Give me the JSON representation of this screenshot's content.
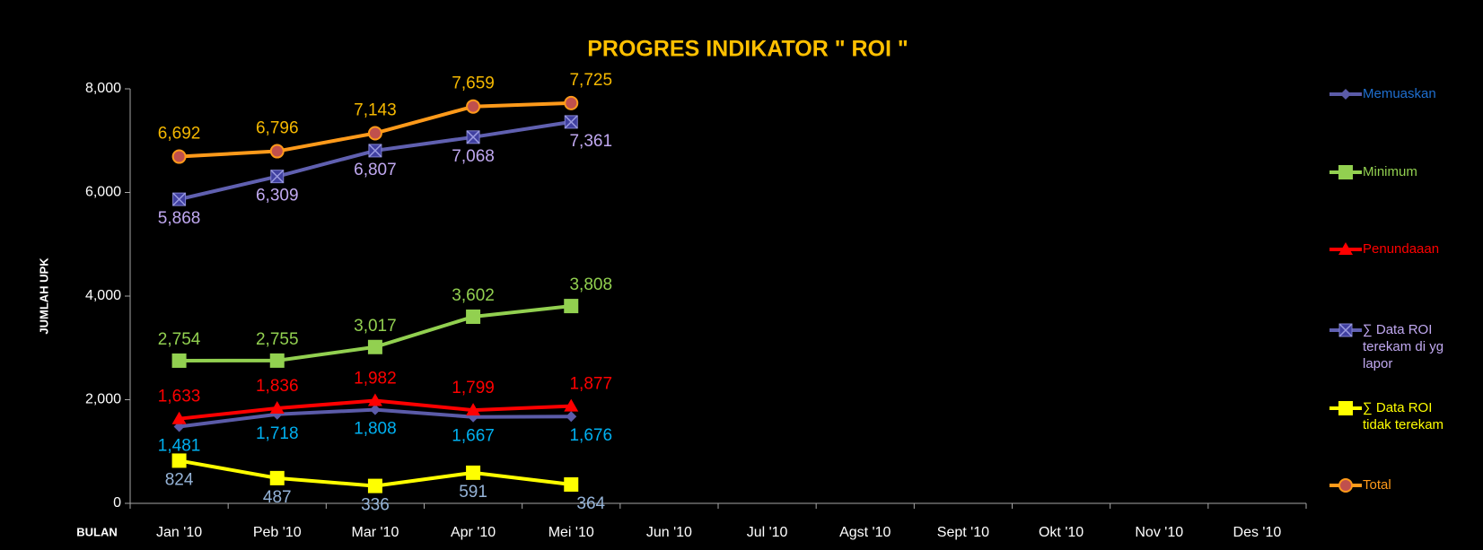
{
  "chart_data": {
    "type": "line",
    "title": "PROGRES INDIKATOR \" ROI \"",
    "y_label": "JUMLAH UPK",
    "x_label": "BULAN",
    "categories": [
      "Jan '10",
      "Peb '10",
      "Mar '10",
      "Apr '10",
      "Mei '10",
      "Jun '10",
      "Jul '10",
      "Agst '10",
      "Sept '10",
      "Okt '10",
      "Nov '10",
      "Des '10"
    ],
    "ylim": [
      0,
      8000
    ],
    "yticks": [
      0,
      {
        "value": 2000,
        "label": "2,000"
      },
      {
        "value": 4000,
        "label": "4,000"
      },
      {
        "value": 6000,
        "label": "6,000"
      },
      {
        "value": 8000,
        "label": "8,000"
      }
    ],
    "grid": false,
    "legend": "right",
    "series": [
      {
        "name": "Memuaskan",
        "color": "#5b5ba8",
        "label_color": "#00b0f0",
        "legend_text_color": "#1f6fd0",
        "marker": "diamond",
        "values": [
          1481,
          1718,
          1808,
          1667,
          1676,
          null,
          null,
          null,
          null,
          null,
          null,
          null
        ],
        "value_labels": [
          "1,481",
          "1,718",
          "1,808",
          "1,667",
          "1,676",
          null,
          null,
          null,
          null,
          null,
          null,
          null
        ]
      },
      {
        "name": "Minimum",
        "color": "#92d050",
        "label_color": "#92d050",
        "legend_text_color": "#92d050",
        "marker": "square",
        "values": [
          2754,
          2755,
          3017,
          3602,
          3808,
          null,
          null,
          null,
          null,
          null,
          null,
          null
        ],
        "value_labels": [
          "2,754",
          "2,755",
          "3,017",
          "3,602",
          "3,808",
          null,
          null,
          null,
          null,
          null,
          null,
          null
        ]
      },
      {
        "name": "Penundaaan",
        "color": "#ff0000",
        "label_color": "#ff0000",
        "legend_text_color": "#ff0000",
        "marker": "triangle",
        "values": [
          1633,
          1836,
          1982,
          1799,
          1877,
          null,
          null,
          null,
          null,
          null,
          null,
          null
        ],
        "value_labels": [
          "1,633",
          "1,836",
          "1,982",
          "1,799",
          "1,877",
          null,
          null,
          null,
          null,
          null,
          null,
          null
        ]
      },
      {
        "name": "∑ Data ROI terekam di yg lapor",
        "color": "#6060b0",
        "label_color": "#c0a8f0",
        "legend_text_color": "#c0a8f0",
        "marker": "xsquare",
        "values": [
          5868,
          6309,
          6807,
          7068,
          7361,
          null,
          null,
          null,
          null,
          null,
          null,
          null
        ],
        "value_labels": [
          "5,868",
          "6,309",
          "6,807",
          "7,068",
          "7,361",
          null,
          null,
          null,
          null,
          null,
          null,
          null
        ]
      },
      {
        "name": "∑ Data ROI tidak terekam",
        "color": "#ffff00",
        "label_color": "#95b3d7",
        "legend_text_color": "#ffff00",
        "marker": "square",
        "values": [
          824,
          487,
          336,
          591,
          364,
          null,
          null,
          null,
          null,
          null,
          null,
          null
        ],
        "value_labels": [
          "824",
          "487",
          "336",
          "591",
          "364",
          null,
          null,
          null,
          null,
          null,
          null,
          null
        ]
      },
      {
        "name": "Total",
        "color": "#ff9a1a",
        "label_color": "#f5b800",
        "legend_text_color": "#ff9a1a",
        "marker": "circle",
        "values": [
          6692,
          6796,
          7143,
          7659,
          7725,
          null,
          null,
          null,
          null,
          null,
          null,
          null
        ],
        "value_labels": [
          "6,692",
          "6,796",
          "7,143",
          "7,659",
          "7,725",
          null,
          null,
          null,
          null,
          null,
          null,
          null
        ]
      }
    ]
  }
}
